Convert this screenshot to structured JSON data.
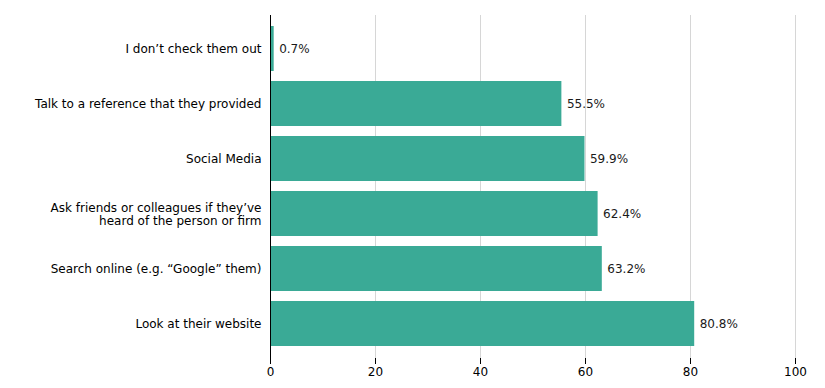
{
  "chart_data": {
    "type": "bar",
    "orientation": "horizontal",
    "categories": [
      "Look at their website",
      "Search online (e.g. “Google” them)",
      "Ask friends or colleagues if they’ve\nheard of the person or firm",
      "Social Media",
      "Talk to a reference that they provided",
      "I don’t check them out"
    ],
    "values": [
      80.8,
      63.2,
      62.4,
      59.9,
      55.5,
      0.7
    ],
    "value_labels": [
      "80.8%",
      "63.2%",
      "62.4%",
      "59.9%",
      "55.5%",
      "0.7%"
    ],
    "data_labels": true,
    "color": "#3aaa96",
    "xlim": [
      0,
      100
    ],
    "xticks": [
      0,
      20,
      40,
      60,
      80,
      100
    ],
    "grid": true
  }
}
